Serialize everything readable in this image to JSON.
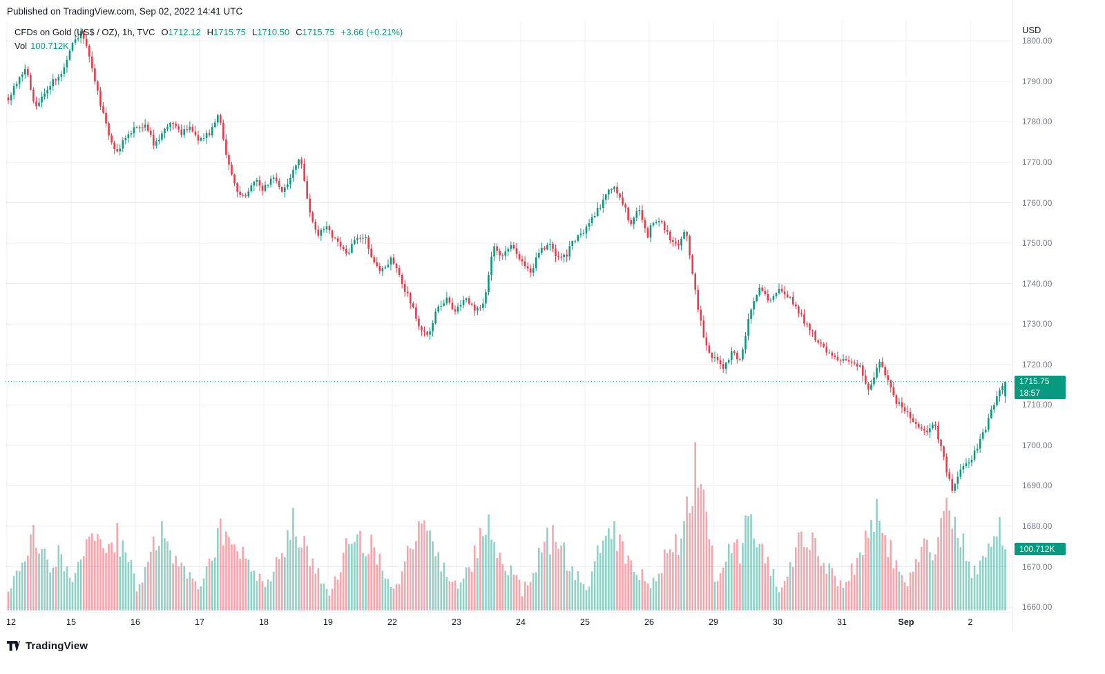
{
  "published_bar": {
    "text": "Published on TradingView.com, Sep 02, 2022 14:41 UTC"
  },
  "legend": {
    "title": "CFDs on Gold (US$ / OZ), 1h, TVC",
    "open_label": "O",
    "open": "1712.12",
    "high_label": "H",
    "high": "1715.75",
    "low_label": "L",
    "low": "1710.50",
    "close_label": "C",
    "close": "1715.75",
    "change": "+3.66 (+0.21%)",
    "volume_label": "Vol",
    "volume": "100.712K"
  },
  "axis": {
    "currency": "USD",
    "price_ticks": [
      "1800.00",
      "1790.00",
      "1780.00",
      "1770.00",
      "1760.00",
      "1750.00",
      "1740.00",
      "1730.00",
      "1720.00",
      "1710.00",
      "1700.00",
      "1690.00",
      "1680.00",
      "1670.00",
      "1660.00"
    ],
    "last_price_badge": "1715.75",
    "countdown_badge": "18:57",
    "last_volume_badge": "100.712K"
  },
  "footer": {
    "brand": "TradingView"
  },
  "colors": {
    "up": "#089981",
    "down": "#f23645",
    "volume_up": "rgba(8,153,129,0.45)",
    "volume_down": "rgba(242,54,69,0.45)",
    "badge": "#089981",
    "grid": "#eceff2",
    "text_dark": "#131722",
    "text_gray": "#787b86"
  },
  "chart_data": {
    "type": "candlestick",
    "title": "CFDs on Gold (US$ / OZ), 1h, TVC",
    "interval": "1h",
    "currency": "USD",
    "ylim": [
      1659,
      1805
    ],
    "y_ticks": [
      1660,
      1670,
      1680,
      1690,
      1700,
      1710,
      1720,
      1730,
      1740,
      1750,
      1760,
      1770,
      1780,
      1790,
      1800
    ],
    "x_labels": [
      "12",
      "15",
      "16",
      "17",
      "18",
      "19",
      "22",
      "23",
      "24",
      "25",
      "26",
      "29",
      "30",
      "31",
      "Sep",
      "2"
    ],
    "volume_axis_max_k": 255,
    "last": {
      "open": 1712.12,
      "high": 1715.75,
      "low": 1710.5,
      "close": 1715.75,
      "volume_k": 100.712,
      "time_left": "18:57"
    },
    "days": [
      {
        "label": "12",
        "closes": [
          1786,
          1790,
          1793,
          1784,
          1786,
          1790,
          1792,
          1797
        ],
        "volumes_k": [
          30,
          60,
          95,
          120,
          85,
          70,
          95,
          50
        ]
      },
      {
        "label": "15",
        "closes": [
          1799,
          1802,
          1796,
          1786,
          1778,
          1772,
          1776,
          1778
        ],
        "volumes_k": [
          40,
          80,
          130,
          110,
          90,
          120,
          100,
          60
        ]
      },
      {
        "label": "16",
        "closes": [
          1778,
          1780,
          1774,
          1777,
          1780,
          1777,
          1779,
          1776
        ],
        "volumes_k": [
          35,
          65,
          105,
          130,
          90,
          75,
          60,
          40
        ]
      },
      {
        "label": "17",
        "closes": [
          1776,
          1777,
          1782,
          1771,
          1763,
          1761,
          1766,
          1763
        ],
        "volumes_k": [
          40,
          75,
          120,
          140,
          110,
          90,
          65,
          45
        ]
      },
      {
        "label": "18",
        "closes": [
          1764,
          1766,
          1763,
          1767,
          1771,
          1758,
          1752,
          1754
        ],
        "volumes_k": [
          35,
          65,
          100,
          140,
          130,
          85,
          60,
          40
        ]
      },
      {
        "label": "19",
        "closes": [
          1753,
          1750,
          1747,
          1751,
          1752,
          1745,
          1743,
          1746
        ],
        "volumes_k": [
          30,
          60,
          115,
          130,
          90,
          105,
          70,
          45
        ]
      },
      {
        "label": "22",
        "closes": [
          1745,
          1740,
          1735,
          1729,
          1727,
          1734,
          1736,
          1733
        ],
        "volumes_k": [
          35,
          65,
          105,
          140,
          120,
          90,
          65,
          45
        ]
      },
      {
        "label": "23",
        "closes": [
          1734,
          1736,
          1733,
          1736,
          1749,
          1747,
          1750,
          1746
        ],
        "volumes_k": [
          35,
          60,
          90,
          158,
          120,
          85,
          65,
          45
        ]
      },
      {
        "label": "24",
        "closes": [
          1745,
          1743,
          1748,
          1750,
          1746,
          1747,
          1751,
          1753
        ],
        "volumes_k": [
          30,
          60,
          90,
          115,
          130,
          85,
          60,
          40
        ]
      },
      {
        "label": "25",
        "closes": [
          1754,
          1757,
          1761,
          1764,
          1761,
          1755,
          1758,
          1752
        ],
        "volumes_k": [
          35,
          75,
          120,
          135,
          105,
          85,
          62,
          45
        ]
      },
      {
        "label": "26",
        "closes": [
          1754,
          1756,
          1752,
          1749,
          1754,
          1739,
          1727,
          1721
        ],
        "volumes_k": [
          35,
          65,
          100,
          110,
          140,
          243,
          170,
          90
        ]
      },
      {
        "label": "29",
        "closes": [
          1722,
          1719,
          1723,
          1721,
          1733,
          1739,
          1736,
          1737
        ],
        "volumes_k": [
          45,
          75,
          105,
          90,
          164,
          120,
          80,
          50
        ]
      },
      {
        "label": "30",
        "closes": [
          1738,
          1737,
          1734,
          1730,
          1727,
          1724,
          1722,
          1721
        ],
        "volumes_k": [
          35,
          65,
          105,
          130,
          100,
          85,
          62,
          45
        ]
      },
      {
        "label": "31",
        "closes": [
          1721,
          1720,
          1719,
          1713,
          1721,
          1716,
          1711,
          1709
        ],
        "volumes_k": [
          35,
          65,
          100,
          125,
          158,
          110,
          75,
          50
        ]
      },
      {
        "label": "Sep",
        "closes": [
          1708,
          1705,
          1703,
          1706,
          1698,
          1689,
          1694,
          1696
        ],
        "volumes_k": [
          45,
          75,
          105,
          100,
          140,
          170,
          120,
          80
        ]
      },
      {
        "label": "2",
        "bars": 13,
        "closes": [
          1697,
          1700,
          1704,
          1709,
          1713,
          1715.75
        ],
        "volumes_k": [
          55,
          75,
          95,
          120,
          166,
          100.712
        ]
      }
    ]
  }
}
